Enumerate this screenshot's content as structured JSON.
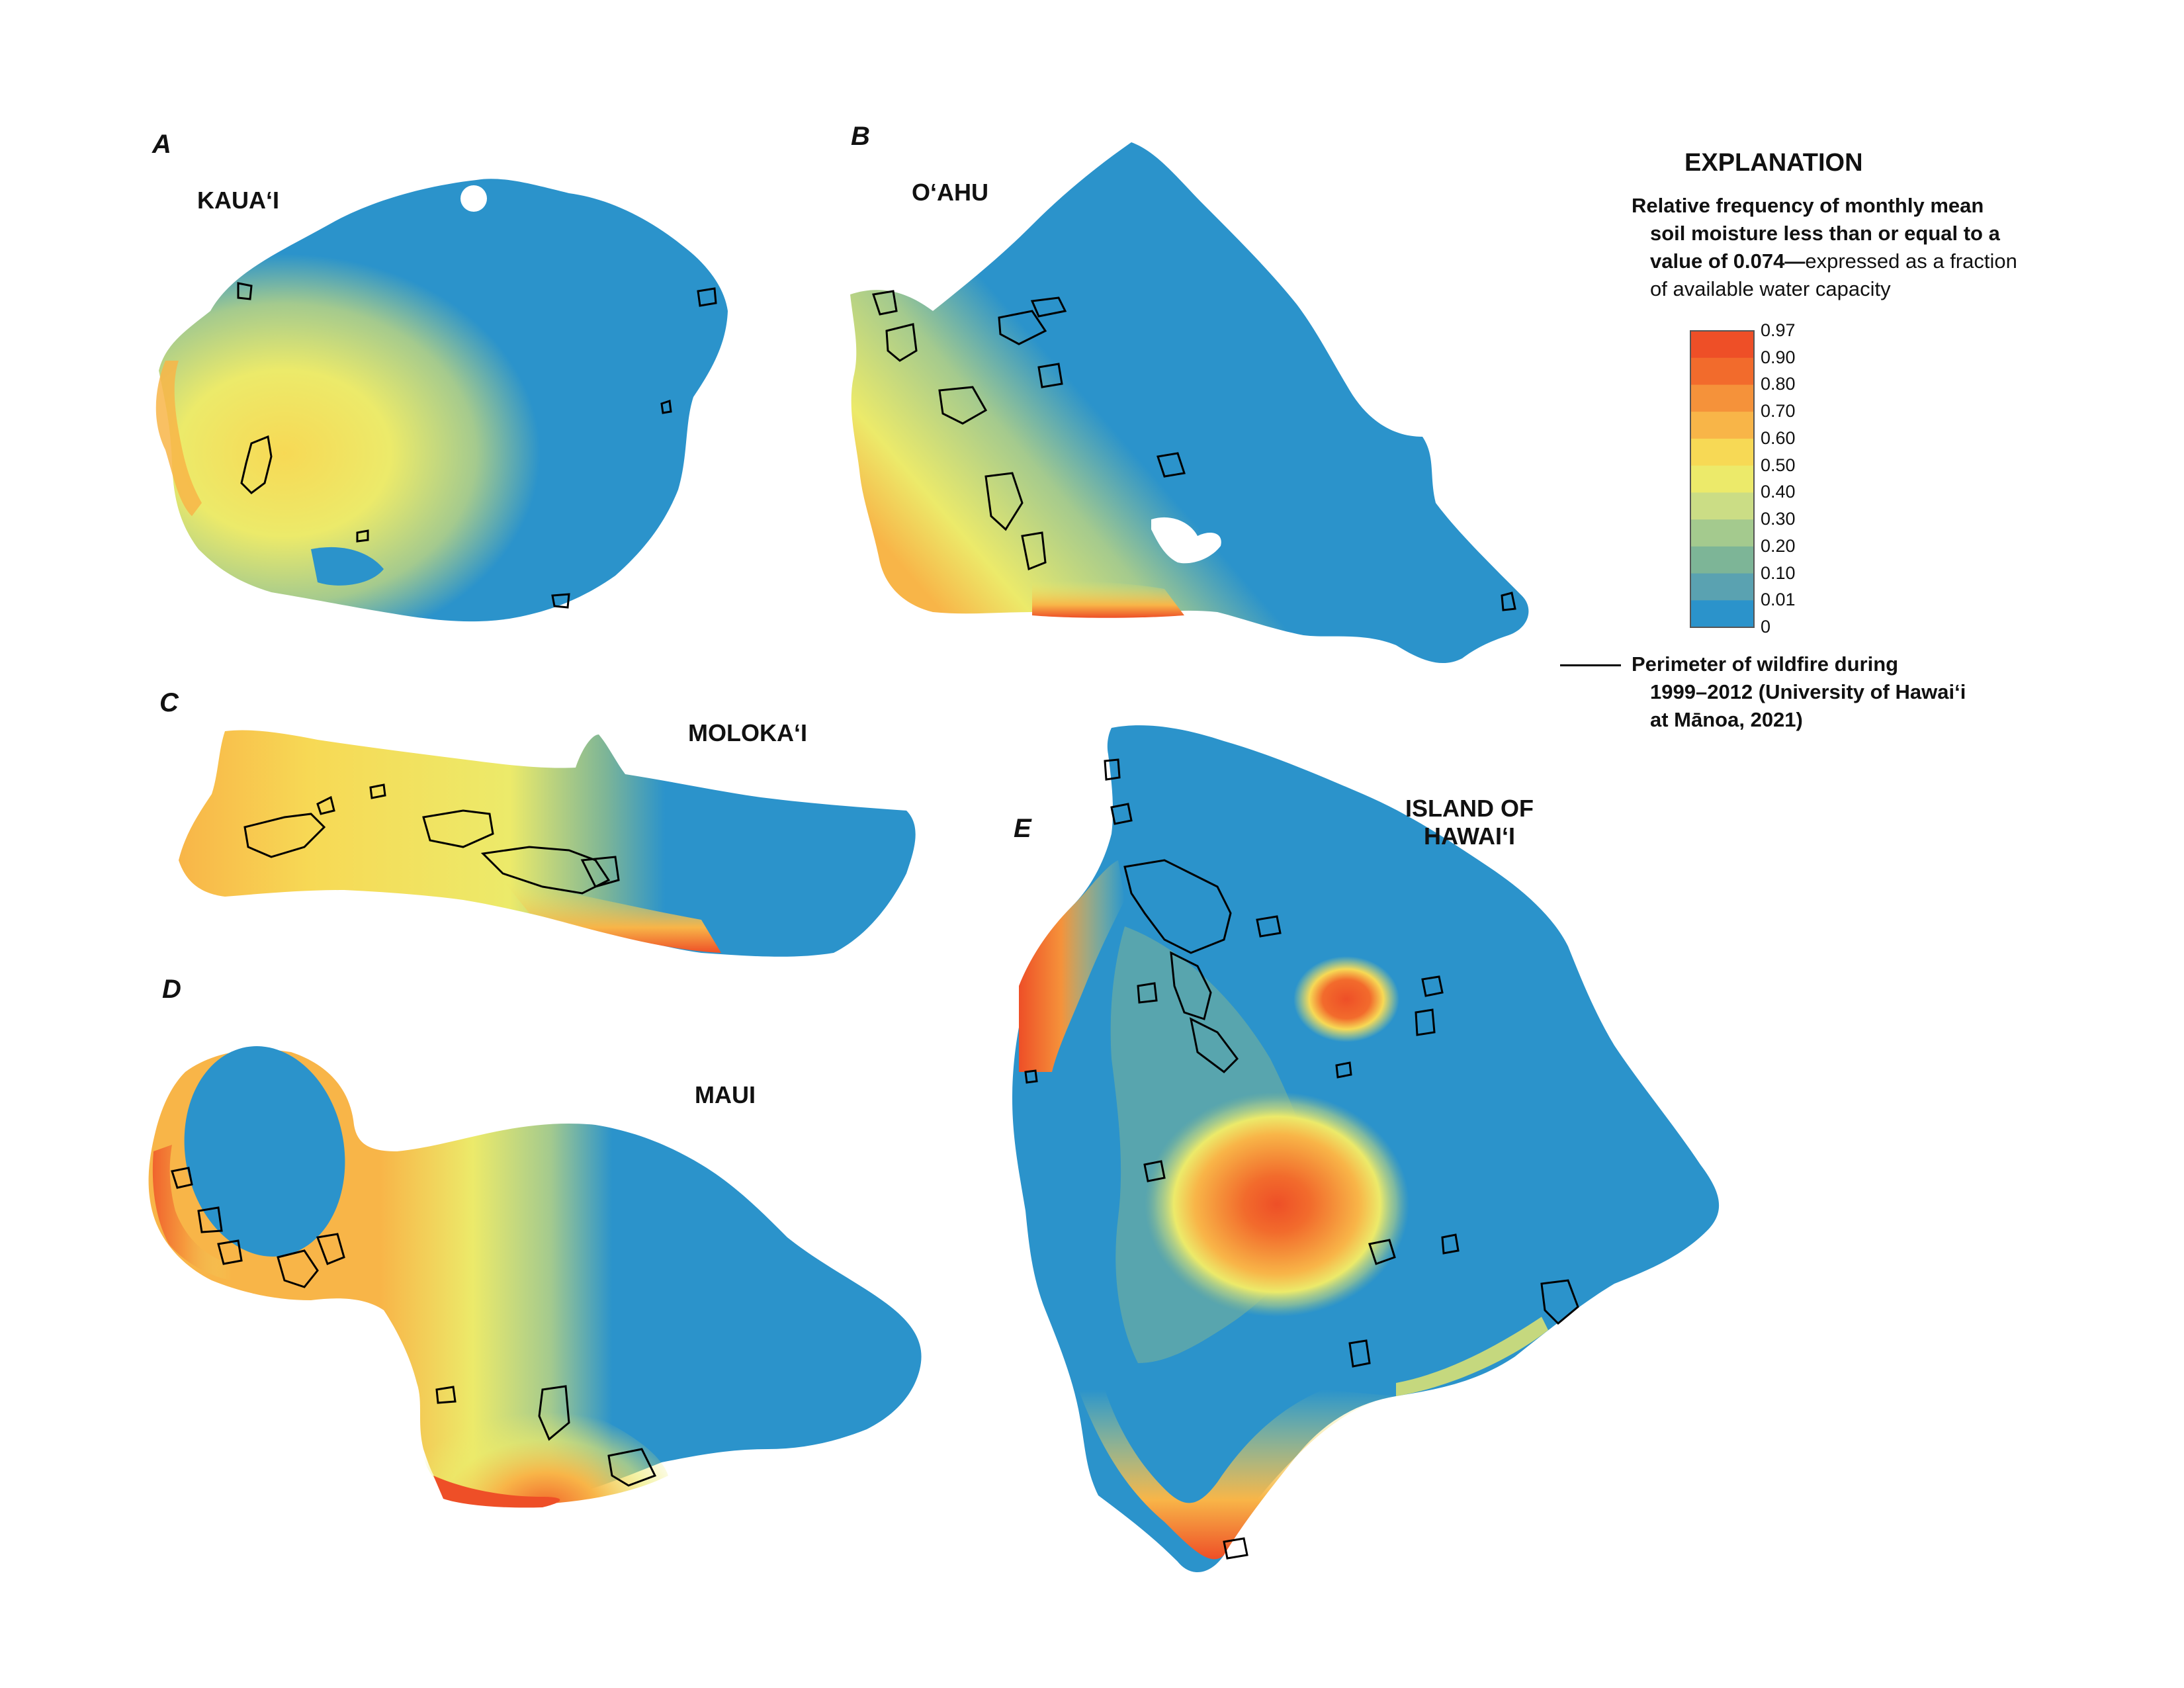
{
  "panels": [
    {
      "letter": "A",
      "name_lines": [
        "KAUA‘I"
      ]
    },
    {
      "letter": "B",
      "name_lines": [
        "O‘AHU"
      ]
    },
    {
      "letter": "C",
      "name_lines": [
        "MOLOKA‘I"
      ]
    },
    {
      "letter": "D",
      "name_lines": [
        "MAUI"
      ]
    },
    {
      "letter": "E",
      "name_lines": [
        "ISLAND OF",
        "HAWAI‘I"
      ]
    }
  ],
  "explanation": {
    "title": "EXPLANATION",
    "desc_line1": "Relative frequency of monthly mean",
    "desc_line2": "soil moisture less than or equal to a",
    "desc_line3_bold": "value of 0.074—",
    "desc_line3_rest": "expressed as a fraction",
    "desc_line4": "of available water capacity",
    "legend_ticks": [
      "0.97",
      "0.90",
      "0.80",
      "0.70",
      "0.60",
      "0.50",
      "0.40",
      "0.30",
      "0.20",
      "0.10",
      "0.01",
      "0"
    ],
    "legend_colors": [
      "#EE4F27",
      "#F26B2C",
      "#F5923A",
      "#F8B548",
      "#F7D955",
      "#ECEA6A",
      "#CBDD85",
      "#A4CA8E",
      "#7DB597",
      "#5AA2B1",
      "#2B93CB"
    ],
    "wildfire_line1": "Perimeter of wildfire during",
    "wildfire_line2": "1999–2012 (University of Hawai‘i",
    "wildfire_line3": "at Mānoa, 2021)"
  },
  "colors": {
    "low": "#2B93CB",
    "low_mid": "#7DB597",
    "mid": "#ECEA6A",
    "high_mid": "#F8B548",
    "high": "#F26B2C",
    "highest": "#EE4F27",
    "wildfire_outline": "#000000"
  }
}
